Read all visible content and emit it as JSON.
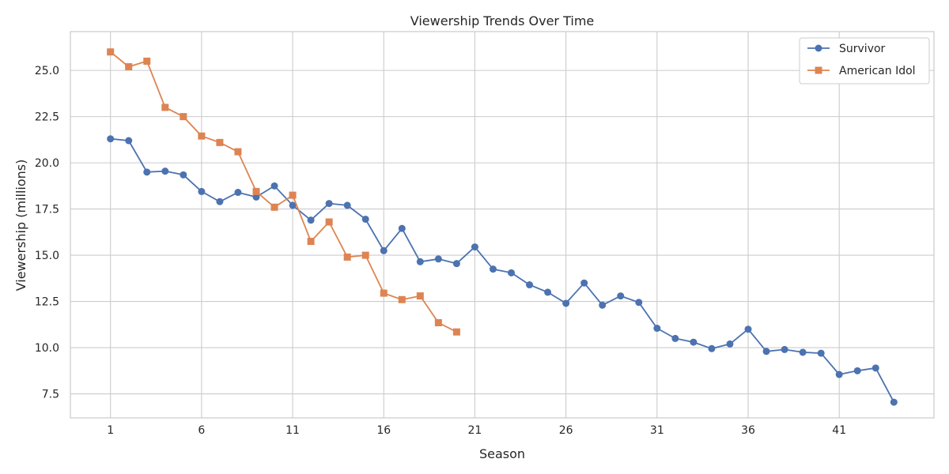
{
  "chart_data": {
    "type": "line",
    "title": "Viewership Trends Over Time",
    "xlabel": "Season",
    "ylabel": "Viewership (millions)",
    "xlim": [
      -1.2,
      46.2
    ],
    "ylim": [
      6.2,
      27.1
    ],
    "xticks": [
      1,
      6,
      11,
      16,
      21,
      26,
      31,
      36,
      41
    ],
    "yticks": [
      7.5,
      10.0,
      12.5,
      15.0,
      17.5,
      20.0,
      22.5,
      25.0
    ],
    "ytick_labels": [
      "7.5",
      "10.0",
      "12.5",
      "15.0",
      "17.5",
      "20.0",
      "22.5",
      "25.0"
    ],
    "grid": true,
    "legend_position": "top-right",
    "series": [
      {
        "name": "Survivor",
        "color": "#4C72B0",
        "marker": "circle",
        "x": [
          1,
          2,
          3,
          4,
          5,
          6,
          7,
          8,
          9,
          10,
          11,
          12,
          13,
          14,
          15,
          16,
          17,
          18,
          19,
          20,
          21,
          22,
          23,
          24,
          25,
          26,
          27,
          28,
          29,
          30,
          31,
          32,
          33,
          34,
          35,
          36,
          37,
          38,
          39,
          40,
          41,
          42,
          43,
          44
        ],
        "values": [
          21.3,
          21.2,
          19.5,
          19.55,
          19.35,
          18.45,
          17.9,
          18.4,
          18.15,
          18.75,
          17.7,
          16.9,
          17.8,
          17.7,
          16.95,
          15.25,
          16.45,
          14.65,
          14.8,
          14.55,
          15.45,
          14.25,
          14.05,
          13.4,
          13.0,
          12.4,
          13.5,
          12.3,
          12.8,
          12.45,
          11.05,
          10.5,
          10.3,
          9.95,
          10.2,
          11.0,
          9.8,
          9.9,
          9.75,
          9.7,
          8.55,
          8.75,
          8.9,
          7.05
        ]
      },
      {
        "name": "American Idol",
        "color": "#DD8452",
        "marker": "square",
        "x": [
          1,
          2,
          3,
          4,
          5,
          6,
          7,
          8,
          9,
          10,
          11,
          12,
          13,
          14,
          15,
          16,
          17,
          18,
          19,
          20
        ],
        "values": [
          26.0,
          25.2,
          25.5,
          23.0,
          22.5,
          21.45,
          21.1,
          20.6,
          18.45,
          17.6,
          18.25,
          15.75,
          16.8,
          14.9,
          15.0,
          12.95,
          12.6,
          12.8,
          11.35,
          10.85
        ]
      }
    ]
  }
}
